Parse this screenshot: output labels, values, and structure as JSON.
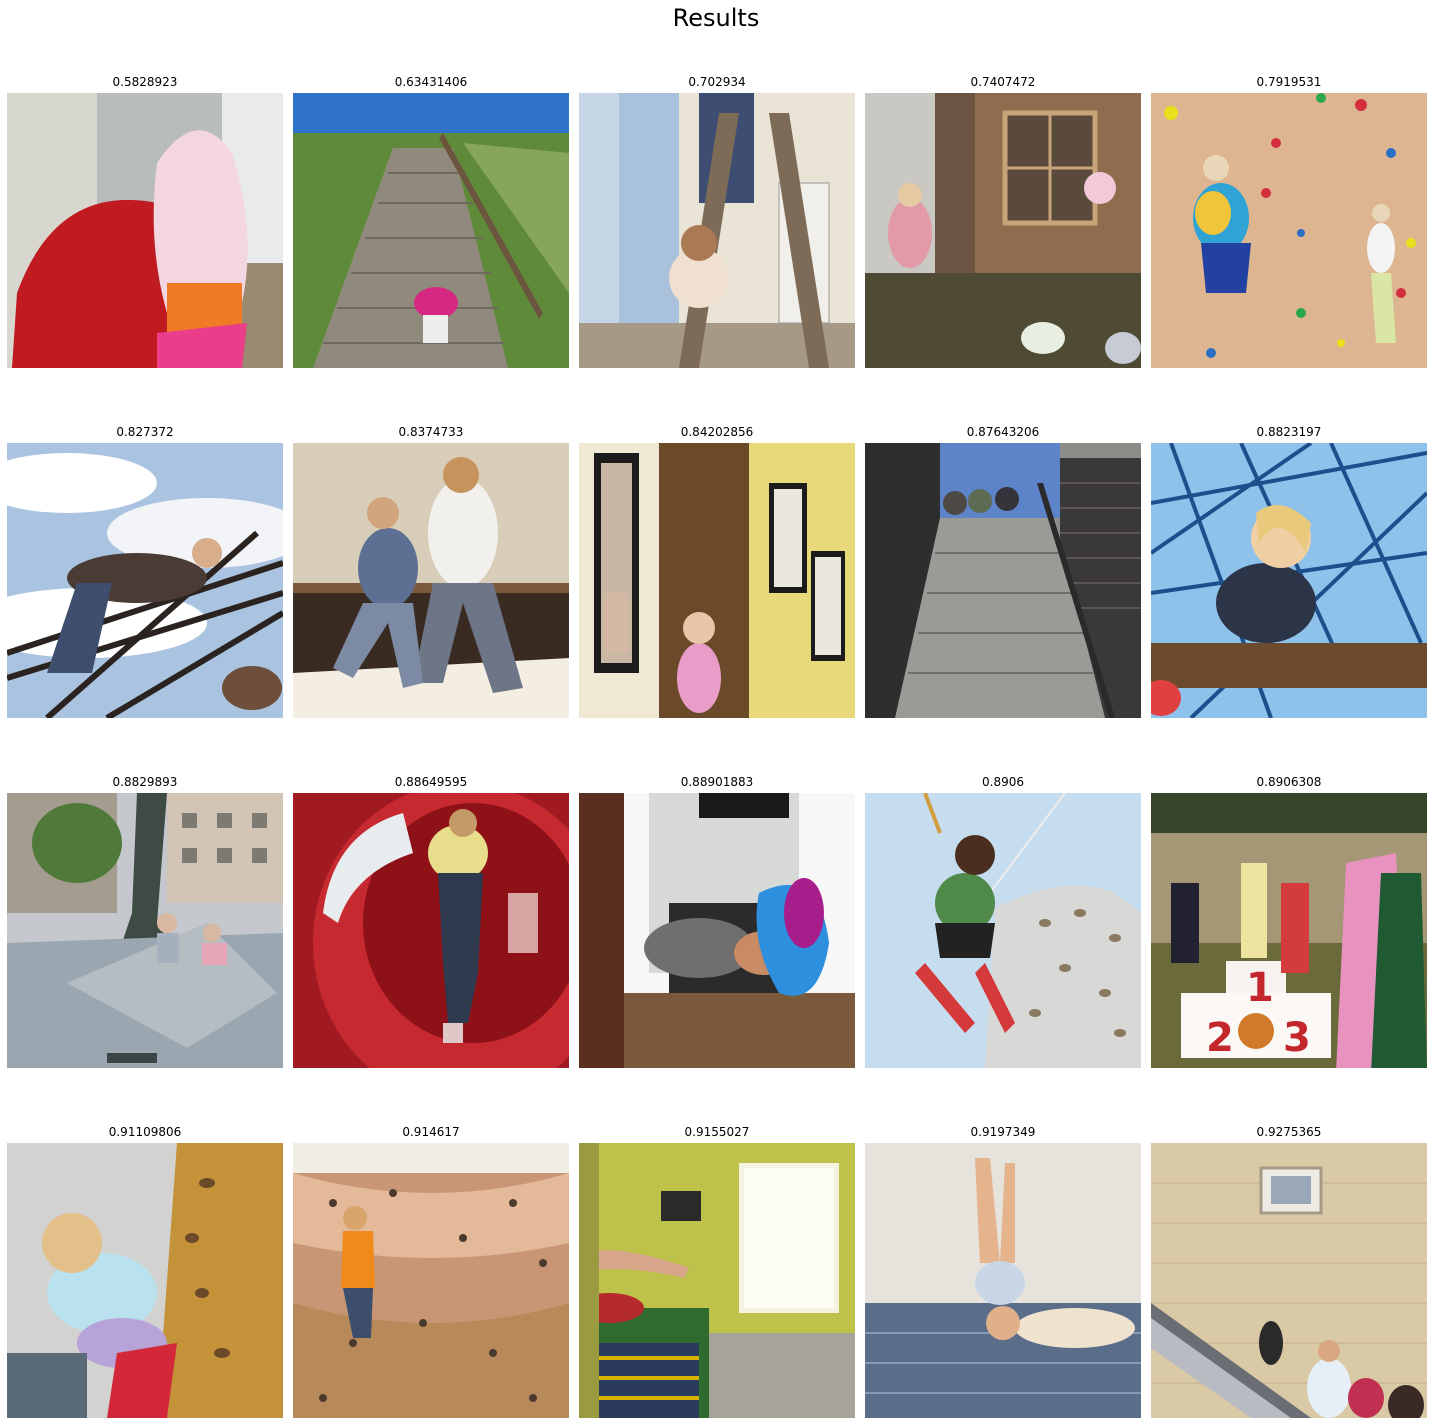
{
  "title": "Results",
  "results": [
    {
      "score": "0.5828923",
      "image": "children-red-and-pink-hoodies-climbing-stairs"
    },
    {
      "score": "0.63431406",
      "image": "toddler-pink-jacket-climbing-outdoor-stairs"
    },
    {
      "score": "0.702934",
      "image": "child-climbing-stepladder-indoors"
    },
    {
      "score": "0.7407472",
      "image": "girl-climbing-steps-of-wooden-playhouse"
    },
    {
      "score": "0.7919531",
      "image": "kids-on-climbing-wall"
    },
    {
      "score": "0.827372",
      "image": "child-climbing-rope-net-against-sky"
    },
    {
      "score": "0.8374733",
      "image": "children-walking-fashion-runway"
    },
    {
      "score": "0.84202856",
      "image": "girl-in-doorway-with-framed-art"
    },
    {
      "score": "0.87643206",
      "image": "boys-sitting-atop-concrete-stairs"
    },
    {
      "score": "0.8823197",
      "image": "toddler-on-blue-rope-climbing-net"
    },
    {
      "score": "0.8829893",
      "image": "kids-climbing-statue-base-in-plaza"
    },
    {
      "score": "0.88649595",
      "image": "child-climbing-red-tube-slide"
    },
    {
      "score": "0.88901883",
      "image": "child-crawling-through-window"
    },
    {
      "score": "0.8906",
      "image": "boy-on-bungee-harness-by-climbing-rock"
    },
    {
      "score": "0.8906308",
      "image": "children-on-winners-podium"
    },
    {
      "score": "0.91109806",
      "image": "girls-on-indoor-climbing-wall"
    },
    {
      "score": "0.914617",
      "image": "boy-in-orange-on-climbing-wall"
    },
    {
      "score": "0.9155027",
      "image": "child-jumping-onto-bed"
    },
    {
      "score": "0.9197349",
      "image": "toddler-headstand-on-bed"
    },
    {
      "score": "0.9275365",
      "image": "people-on-escalator-by-stone-building"
    }
  ]
}
